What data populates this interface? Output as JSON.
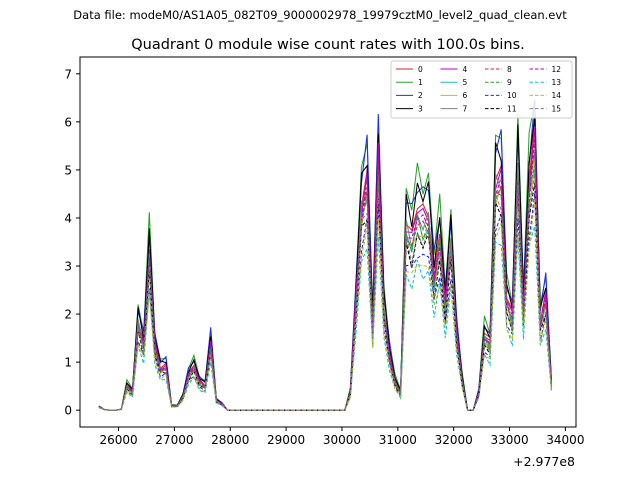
{
  "figure": {
    "suptitle": "Data file: modeM0/AS1A05_082T09_9000002978_19979cztM0_level2_quad_clean.evt",
    "title": "Quadrant 0 module wise count rates with 100.0s bins.",
    "x_offset_label": "+2.977e8"
  },
  "chart_data": {
    "type": "line",
    "title": "Quadrant 0 module wise count rates with 100.0s bins.",
    "xlabel": "",
    "ylabel": "",
    "x_offset": 297700000,
    "xlim": [
      25310,
      34190
    ],
    "ylim": [
      -0.35,
      7.35
    ],
    "xticks": [
      26000,
      27000,
      28000,
      29000,
      30000,
      31000,
      32000,
      33000,
      34000
    ],
    "yticks": [
      0,
      1,
      2,
      3,
      4,
      5,
      6,
      7
    ],
    "legend_position": "top-right",
    "legend_columns": 4,
    "grid": false,
    "x": [
      25650,
      25750,
      25850,
      25950,
      26050,
      26150,
      26250,
      26350,
      26450,
      26550,
      26650,
      26750,
      26850,
      26950,
      27050,
      27150,
      27250,
      27350,
      27450,
      27550,
      27650,
      27750,
      27850,
      27950,
      28050,
      28150,
      28250,
      28350,
      28450,
      28550,
      28650,
      28750,
      28850,
      28950,
      29050,
      29150,
      29250,
      29350,
      29450,
      29550,
      29650,
      29750,
      29850,
      29950,
      30050,
      30150,
      30250,
      30350,
      30450,
      30550,
      30650,
      30750,
      30850,
      30950,
      31050,
      31150,
      31250,
      31350,
      31450,
      31550,
      31650,
      31750,
      31850,
      31950,
      32050,
      32150,
      32250,
      32350,
      32450,
      32550,
      32650,
      32750,
      32850,
      32950,
      33050,
      33150,
      33250,
      33350,
      33450,
      33550,
      33650,
      33750
    ],
    "base_profile": [
      0.08,
      0.01,
      0.0,
      0.0,
      0.02,
      0.55,
      0.42,
      2.0,
      1.5,
      3.6,
      1.5,
      0.95,
      1.0,
      0.1,
      0.1,
      0.3,
      0.8,
      1.0,
      0.65,
      0.55,
      1.55,
      0.22,
      0.15,
      0.0,
      0.0,
      0.0,
      0.0,
      0.0,
      0.0,
      0.0,
      0.0,
      0.0,
      0.0,
      0.0,
      0.0,
      0.0,
      0.0,
      0.0,
      0.0,
      0.0,
      0.0,
      0.0,
      0.0,
      0.0,
      0.0,
      0.4,
      2.5,
      4.6,
      5.2,
      1.9,
      5.7,
      2.3,
      1.3,
      0.65,
      0.4,
      4.2,
      3.9,
      4.5,
      4.3,
      4.4,
      3.0,
      3.9,
      2.4,
      3.8,
      1.8,
      0.7,
      0.0,
      0.0,
      0.4,
      1.7,
      1.5,
      5.2,
      5.3,
      2.5,
      2.1,
      5.5,
      2.3,
      5.0,
      6.1,
      2.0,
      2.6,
      0.6
    ],
    "series": [
      {
        "name": "0",
        "color": "#d62728",
        "dash": "solid",
        "scale": 0.96
      },
      {
        "name": "1",
        "color": "#2ca02c",
        "dash": "solid",
        "scale": 1.1
      },
      {
        "name": "2",
        "color": "#1f2ee6",
        "dash": "solid",
        "scale": 1.06
      },
      {
        "name": "3",
        "color": "#000000",
        "dash": "solid",
        "scale": 1.03
      },
      {
        "name": "4",
        "color": "#bf00bf",
        "dash": "solid",
        "scale": 0.93
      },
      {
        "name": "5",
        "color": "#17becf",
        "dash": "solid",
        "scale": 0.86
      },
      {
        "name": "6",
        "color": "#bcbd22",
        "dash": "solid",
        "scale": 0.84
      },
      {
        "name": "7",
        "color": "#7f7f7f",
        "dash": "solid",
        "scale": 0.9
      },
      {
        "name": "8",
        "color": "#d62728",
        "dash": "dashed",
        "scale": 0.88
      },
      {
        "name": "9",
        "color": "#2ca02c",
        "dash": "dashed",
        "scale": 0.87
      },
      {
        "name": "10",
        "color": "#1f2ee6",
        "dash": "dashed",
        "scale": 0.74
      },
      {
        "name": "11",
        "color": "#000000",
        "dash": "dashed",
        "scale": 0.8
      },
      {
        "name": "12",
        "color": "#bf00bf",
        "dash": "dashed",
        "scale": 0.9
      },
      {
        "name": "13",
        "color": "#17becf",
        "dash": "dashed",
        "scale": 0.66
      },
      {
        "name": "14",
        "color": "#bcbd22",
        "dash": "dashed",
        "scale": 0.7
      },
      {
        "name": "15",
        "color": "#7f7f7f",
        "dash": "dashed",
        "scale": 0.82
      }
    ]
  }
}
